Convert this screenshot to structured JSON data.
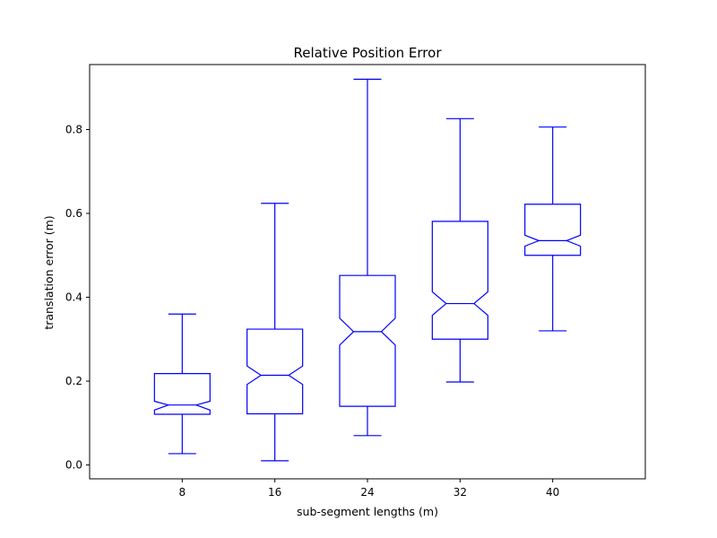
{
  "chart_data": {
    "type": "boxplot",
    "title": "Relative Position Error",
    "xlabel": "sub-segment lengths (m)",
    "ylabel": "translation error (m)",
    "ylim": [
      -0.033,
      0.955
    ],
    "yticks": [
      0.0,
      0.2,
      0.4,
      0.6,
      0.8
    ],
    "ytick_labels": [
      "0.0",
      "0.2",
      "0.4",
      "0.6",
      "0.8"
    ],
    "notched": true,
    "grid": false,
    "box_color": "#0000ff",
    "categories": [
      "8",
      "16",
      "24",
      "32",
      "40"
    ],
    "boxes": [
      {
        "label": "8",
        "whisker_low": 0.027,
        "q1": 0.121,
        "median": 0.143,
        "q3": 0.218,
        "whisker_high": 0.36,
        "notch_low": 0.131,
        "notch_high": 0.152
      },
      {
        "label": "16",
        "whisker_low": 0.01,
        "q1": 0.122,
        "median": 0.214,
        "q3": 0.324,
        "whisker_high": 0.624,
        "notch_low": 0.192,
        "notch_high": 0.236
      },
      {
        "label": "24",
        "whisker_low": 0.07,
        "q1": 0.14,
        "median": 0.318,
        "q3": 0.452,
        "whisker_high": 0.92,
        "notch_low": 0.286,
        "notch_high": 0.35
      },
      {
        "label": "32",
        "whisker_low": 0.198,
        "q1": 0.3,
        "median": 0.385,
        "q3": 0.581,
        "whisker_high": 0.826,
        "notch_low": 0.357,
        "notch_high": 0.413
      },
      {
        "label": "40",
        "whisker_low": 0.32,
        "q1": 0.5,
        "median": 0.535,
        "q3": 0.622,
        "whisker_high": 0.806,
        "notch_low": 0.522,
        "notch_high": 0.548
      }
    ]
  }
}
